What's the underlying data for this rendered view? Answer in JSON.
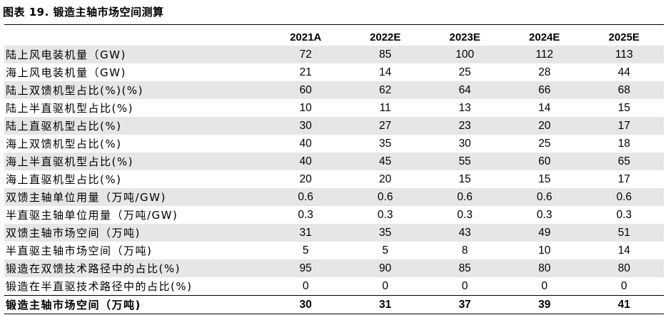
{
  "title": "图表 19. 锻造主轴市场空间测算",
  "table": {
    "columns": [
      "",
      "2021A",
      "2022E",
      "2023E",
      "2024E",
      "2025E"
    ],
    "rows": [
      {
        "label": "陆上风电装机量（GW)",
        "values": [
          "72",
          "85",
          "100",
          "112",
          "113"
        ]
      },
      {
        "label": "海上风电装机量（GW)",
        "values": [
          "21",
          "14",
          "25",
          "28",
          "44"
        ]
      },
      {
        "label": "陆上双馈机型占比(%)(%)",
        "values": [
          "60",
          "62",
          "64",
          "66",
          "68"
        ]
      },
      {
        "label": "陆上半直驱机型占比(%)",
        "values": [
          "10",
          "11",
          "13",
          "14",
          "15"
        ]
      },
      {
        "label": "陆上直驱机型占比(%)",
        "values": [
          "30",
          "27",
          "23",
          "20",
          "17"
        ]
      },
      {
        "label": "海上双馈机型占比(%)",
        "values": [
          "40",
          "35",
          "30",
          "25",
          "18"
        ]
      },
      {
        "label": "海上半直驱机型占比(%)",
        "values": [
          "40",
          "45",
          "55",
          "60",
          "65"
        ]
      },
      {
        "label": "海上直驱机型占比(%)",
        "values": [
          "20",
          "20",
          "15",
          "15",
          "17"
        ]
      },
      {
        "label": "双馈主轴单位用量（万吨/GW)",
        "values": [
          "0.6",
          "0.6",
          "0.6",
          "0.6",
          "0.6"
        ]
      },
      {
        "label": "半直驱主轴单位用量（万吨/GW)",
        "values": [
          "0.3",
          "0.3",
          "0.3",
          "0.3",
          "0.3"
        ]
      },
      {
        "label": "双馈主轴市场空间（万吨)",
        "values": [
          "31",
          "35",
          "43",
          "49",
          "51"
        ]
      },
      {
        "label": "半直驱主轴市场空间（万吨)",
        "values": [
          "5",
          "5",
          "8",
          "10",
          "14"
        ]
      },
      {
        "label": "锻造在双馈技术路径中的占比(%)",
        "values": [
          "95",
          "90",
          "85",
          "80",
          "80"
        ]
      },
      {
        "label": "锻造在半直驱技术路径中的占比(%)",
        "values": [
          "0",
          "0",
          "0",
          "0",
          "0"
        ]
      }
    ],
    "total_row": {
      "label": "锻造主轴市场空间（万吨)",
      "values": [
        "30",
        "31",
        "37",
        "39",
        "41"
      ]
    }
  },
  "colors": {
    "shade": "#e6e6e6",
    "rule": "#000000"
  }
}
